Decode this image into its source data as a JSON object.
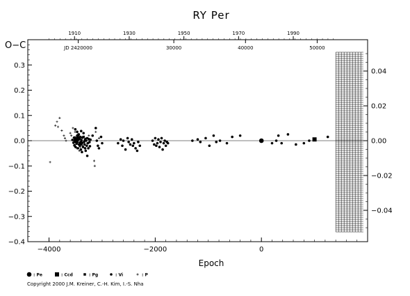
{
  "chart_data": {
    "type": "scatter",
    "title": "RY  Per",
    "xlabel": "Epoch",
    "ylabel": "O−C",
    "xlim": [
      -4400,
      2000
    ],
    "ylim": [
      -0.4,
      0.4
    ],
    "ylim_right": [
      -0.058,
      0.058
    ],
    "x_ticks": [
      -4000,
      -2000,
      0
    ],
    "x_tick_labels": [
      "−4000",
      "−2000",
      "0"
    ],
    "y_ticks": [
      -0.4,
      -0.3,
      -0.2,
      -0.1,
      0.0,
      0.1,
      0.2,
      0.3
    ],
    "y_tick_labels": [
      "−0.4",
      "−0.3",
      "−0.2",
      "−0.1",
      "0.0",
      "0.1",
      "0.2",
      "0.3"
    ],
    "y_right_ticks": [
      -0.04,
      -0.02,
      0.0,
      0.02,
      0.04
    ],
    "y_right_tick_labels": [
      "−0.04",
      "−0.02",
      "0.00",
      "0.02",
      "0.04"
    ],
    "top_axis_years": [
      {
        "epoch": -3520,
        "label": "1910"
      },
      {
        "epoch": -2490,
        "label": "1930"
      },
      {
        "epoch": -1460,
        "label": "1950"
      },
      {
        "epoch": -430,
        "label": "1970"
      },
      {
        "epoch": 600,
        "label": "1990"
      }
    ],
    "jd_labels": [
      {
        "epoch": -3450,
        "label": "JD 2420000"
      },
      {
        "epoch": -1650,
        "label": "30000"
      },
      {
        "epoch": -300,
        "label": "40000"
      },
      {
        "epoch": 1050,
        "label": "50000"
      }
    ],
    "grid": false,
    "zero_line": true,
    "legend_position": "bottom-left",
    "hatched_region": {
      "from_epoch": 1400,
      "to_epoch": 1920
    },
    "series": [
      {
        "name": ": Pe",
        "marker": "circle",
        "size": "large",
        "points": [
          [
            -3500,
            0.0
          ],
          [
            -3450,
            0.01
          ],
          [
            -3400,
            -0.01
          ],
          [
            0,
            0.0
          ]
        ]
      },
      {
        "name": ": Ccd",
        "marker": "square",
        "size": "large",
        "points": [
          [
            1000,
            0.005
          ]
        ]
      },
      {
        "name": ": Pg",
        "marker": "square",
        "size": "small",
        "points": [
          [
            -3350,
            0.015
          ]
        ]
      },
      {
        "name": ": Vi",
        "marker": "circle",
        "size": "small",
        "points": [
          [
            -3560,
            0.003
          ],
          [
            -3540,
            -0.008
          ],
          [
            -3530,
            0.012
          ],
          [
            -3520,
            -0.018
          ],
          [
            -3510,
            0.006
          ],
          [
            -3500,
            -0.025
          ],
          [
            -3490,
            0.01
          ],
          [
            -3480,
            -0.012
          ],
          [
            -3470,
            0.02
          ],
          [
            -3465,
            -0.005
          ],
          [
            -3455,
            -0.03
          ],
          [
            -3445,
            0.004
          ],
          [
            -3435,
            -0.015
          ],
          [
            -3425,
            0.008
          ],
          [
            -3420,
            -0.02
          ],
          [
            -3410,
            0.015
          ],
          [
            -3400,
            -0.035
          ],
          [
            -3390,
            0.002
          ],
          [
            -3380,
            -0.01
          ],
          [
            -3370,
            0.012
          ],
          [
            -3360,
            -0.025
          ],
          [
            -3350,
            0.03
          ],
          [
            -3340,
            -0.005
          ],
          [
            -3330,
            -0.015
          ],
          [
            -3320,
            0.005
          ],
          [
            -3310,
            -0.04
          ],
          [
            -3300,
            0.0
          ],
          [
            -3290,
            -0.02
          ],
          [
            -3280,
            0.01
          ],
          [
            -3270,
            -0.01
          ],
          [
            -3260,
            -0.03
          ],
          [
            -3250,
            0.006
          ],
          [
            -3240,
            -0.006
          ],
          [
            -3230,
            -0.022
          ],
          [
            -3220,
            0.004
          ],
          [
            -3505,
            0.045
          ],
          [
            -3470,
            0.035
          ],
          [
            -3440,
            0.025
          ],
          [
            -3395,
            0.038
          ],
          [
            -3380,
            -0.045
          ],
          [
            -3320,
            -0.03
          ],
          [
            -3280,
            -0.06
          ],
          [
            -3180,
            0.02
          ],
          [
            -3120,
            0.05
          ],
          [
            -3100,
            0.0
          ],
          [
            -3080,
            -0.02
          ],
          [
            -3060,
            -0.03
          ],
          [
            -3020,
            0.015
          ],
          [
            -3000,
            -0.01
          ],
          [
            -2700,
            -0.01
          ],
          [
            -2650,
            0.005
          ],
          [
            -2620,
            -0.02
          ],
          [
            -2600,
            0.0
          ],
          [
            -2560,
            -0.035
          ],
          [
            -2520,
            0.01
          ],
          [
            -2500,
            -0.005
          ],
          [
            -2470,
            -0.015
          ],
          [
            -2440,
            0.005
          ],
          [
            -2420,
            -0.02
          ],
          [
            -2400,
            -0.01
          ],
          [
            -2370,
            -0.03
          ],
          [
            -2340,
            -0.04
          ],
          [
            -2320,
            -0.005
          ],
          [
            -2290,
            -0.02
          ],
          [
            -2050,
            0.0
          ],
          [
            -2020,
            -0.015
          ],
          [
            -2000,
            0.01
          ],
          [
            -1980,
            -0.02
          ],
          [
            -1960,
            -0.01
          ],
          [
            -1940,
            0.005
          ],
          [
            -1920,
            -0.025
          ],
          [
            -1900,
            -0.005
          ],
          [
            -1880,
            0.01
          ],
          [
            -1860,
            -0.035
          ],
          [
            -1840,
            -0.01
          ],
          [
            -1820,
            0.0
          ],
          [
            -1800,
            -0.02
          ],
          [
            -1780,
            -0.005
          ],
          [
            -1760,
            -0.01
          ],
          [
            -1300,
            0.0
          ],
          [
            -1200,
            0.005
          ],
          [
            -1150,
            -0.005
          ],
          [
            -1050,
            0.01
          ],
          [
            -980,
            -0.02
          ],
          [
            -900,
            0.02
          ],
          [
            -850,
            -0.005
          ],
          [
            -780,
            0.0
          ],
          [
            -650,
            -0.01
          ],
          [
            -550,
            0.015
          ],
          [
            -400,
            0.02
          ],
          [
            200,
            -0.01
          ],
          [
            280,
            0.0
          ],
          [
            320,
            0.02
          ],
          [
            380,
            -0.01
          ],
          [
            500,
            0.025
          ],
          [
            650,
            -0.015
          ],
          [
            800,
            -0.01
          ],
          [
            900,
            0.0
          ],
          [
            1250,
            0.015
          ]
        ]
      },
      {
        "name": ": P",
        "marker": "plus",
        "size": "small",
        "points": [
          [
            -3980,
            -0.085
          ],
          [
            -3880,
            0.06
          ],
          [
            -3850,
            0.075
          ],
          [
            -3830,
            0.055
          ],
          [
            -3800,
            0.09
          ],
          [
            -3760,
            0.04
          ],
          [
            -3720,
            0.02
          ],
          [
            -3700,
            0.01
          ],
          [
            -3680,
            0.0
          ],
          [
            -3600,
            0.03
          ],
          [
            -3580,
            0.02
          ],
          [
            -3550,
            0.05
          ],
          [
            -3530,
            -0.02
          ],
          [
            -3510,
            0.015
          ],
          [
            -3490,
            -0.01
          ],
          [
            -3460,
            0.025
          ],
          [
            -3430,
            -0.04
          ],
          [
            -3400,
            0.005
          ],
          [
            -3370,
            -0.02
          ],
          [
            -3340,
            0.0
          ],
          [
            -3310,
            0.01
          ],
          [
            -3280,
            -0.01
          ],
          [
            -3250,
            0.02
          ],
          [
            -3230,
            -0.005
          ],
          [
            -3150,
            -0.08
          ],
          [
            -3140,
            -0.1
          ],
          [
            -3120,
            0.035
          ],
          [
            -3100,
            0.0
          ],
          [
            -3060,
            0.01
          ],
          [
            -3510,
            0.035
          ],
          [
            -3475,
            -0.03
          ],
          [
            -3445,
            0.02
          ],
          [
            -3415,
            -0.025
          ],
          [
            -3395,
            0.005
          ]
        ]
      }
    ]
  },
  "copyright": "Copyright 2000 J.M. Kreiner, C.-H. Kim, I.-S. Nha"
}
